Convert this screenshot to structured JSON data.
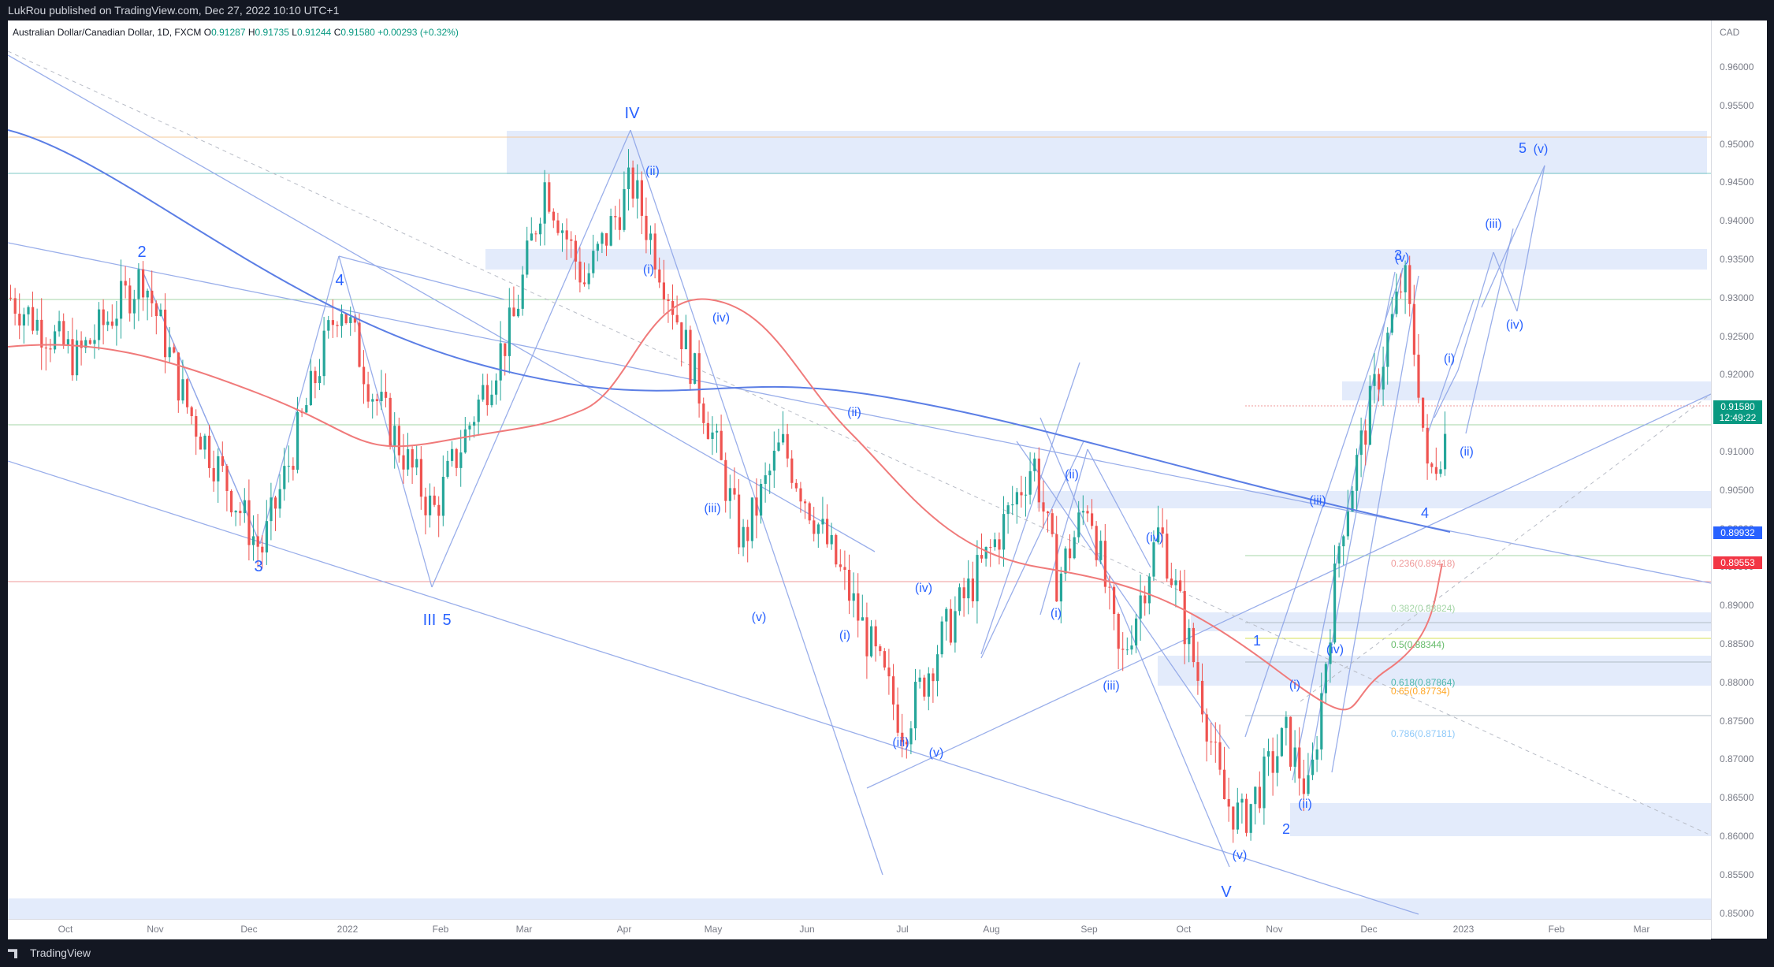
{
  "header": {
    "publisher_line": "LukRou published on TradingView.com, Dec 27, 2022 10:10 UTC+1"
  },
  "legend": {
    "symbol": "Australian Dollar/Canadian Dollar, 1D, FXCM",
    "o_label": "O",
    "o_value": "0.91287",
    "h_label": "H",
    "h_value": "0.91735",
    "l_label": "L",
    "l_value": "0.91244",
    "c_label": "C",
    "c_value": "0.91580",
    "change": "+0.00293 (+0.32%)"
  },
  "price_axis": {
    "currency": "CAD",
    "ticks": [
      "0.96000",
      "0.95500",
      "0.95000",
      "0.94500",
      "0.94000",
      "0.93500",
      "0.93000",
      "0.92500",
      "0.92000",
      "0.91500",
      "0.91000",
      "0.90500",
      "0.90000",
      "0.89500",
      "0.89000",
      "0.88500",
      "0.88000",
      "0.87500",
      "0.87000",
      "0.86500",
      "0.86000",
      "0.85500",
      "0.85000"
    ],
    "current_price": "0.91580",
    "countdown": "12:49:22",
    "tag_ma_blue": "0.89932",
    "tag_ma_red": "0.89553"
  },
  "time_axis": {
    "labels": [
      "Oct",
      "Nov",
      "Dec",
      "2022",
      "Feb",
      "Mar",
      "Apr",
      "May",
      "Jun",
      "Jul",
      "Aug",
      "Sep",
      "Oct",
      "Nov",
      "Dec",
      "2023",
      "Feb",
      "Mar"
    ]
  },
  "fib_levels": [
    "0.236(0.89418)",
    "0.382(0.88824)",
    "0.5(0.88344)",
    "0.618(0.87864)",
    "0.65(0.87734)",
    "0.786(0.87181)"
  ],
  "wave_labels": {
    "w2a": "2",
    "w3a": "3",
    "w4a": "4",
    "w5a": "5",
    "wIII": "III",
    "wIV": "IV",
    "wV": "V",
    "w1b": "1",
    "w2b": "2",
    "w3b": "3",
    "w4b": "4",
    "w5b": "5",
    "s_i": "(i)",
    "s_ii": "(ii)",
    "s_iii": "(iii)",
    "s_iv": "(iv)",
    "s_v": "(v)"
  },
  "footer": {
    "brand": "TradingView"
  },
  "colors": {
    "up": "#26a69a",
    "down": "#ef5350",
    "ma_blue": "#5b7ee5",
    "ma_red": "#f07a7a",
    "zone": "#e3ebfb",
    "label_blue": "#2962ff"
  }
}
